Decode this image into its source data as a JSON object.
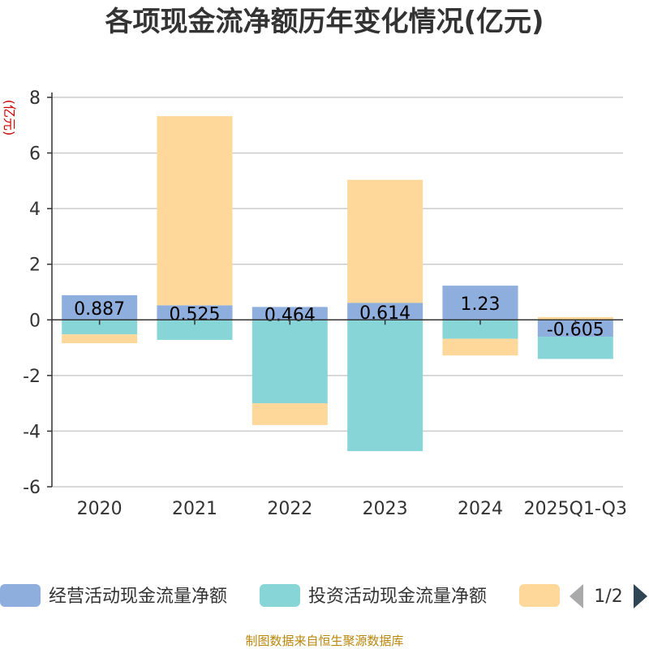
{
  "chart_data": {
    "type": "bar",
    "stacked": true,
    "title": "各项现金流净额历年变化情况(亿元)",
    "ylabel": "(亿元)",
    "ylim": [
      -6,
      8
    ],
    "yticks": [
      8,
      6,
      4,
      2,
      0,
      -2,
      -4,
      -6
    ],
    "categories": [
      "2020",
      "2021",
      "2022",
      "2023",
      "2024",
      "2025Q1-Q3"
    ],
    "series": [
      {
        "name": "经营活动现金流量净额",
        "color": "#8eaedd",
        "values": [
          0.887,
          0.525,
          0.464,
          0.614,
          1.23,
          -0.605
        ],
        "labels": [
          "0.887",
          "0.525",
          "0.464",
          "0.614",
          "1.23",
          "-0.605"
        ]
      },
      {
        "name": "投资活动现金流量净额",
        "color": "#88d5d8",
        "values": [
          -0.52,
          -0.72,
          -3.0,
          -4.72,
          -0.68,
          -0.8
        ]
      },
      {
        "name": "",
        "color": "#fdd89a",
        "values": [
          -0.32,
          6.8,
          -0.78,
          4.42,
          -0.6,
          0.1
        ]
      }
    ],
    "legend_page": "1/2",
    "source": "制图数据来自恒生聚源数据库"
  }
}
